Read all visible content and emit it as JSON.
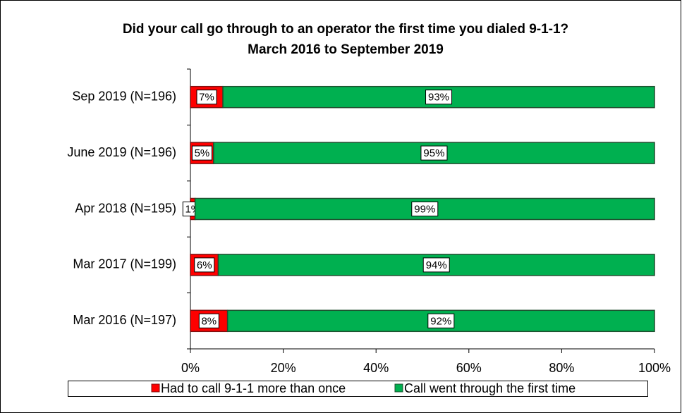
{
  "chart_data": {
    "type": "stacked_bar_horizontal",
    "title": "Did your call go through to an operator the first time you dialed 9-1-1?",
    "subtitle": "March 2016 to September 2019",
    "categories": [
      "Sep 2019 (N=196)",
      "June 2019 (N=196)",
      "Apr 2018 (N=195)",
      "Mar 2017 (N=199)",
      "Mar 2016 (N=197)"
    ],
    "series": [
      {
        "name": "Had to call 9-1-1 more than once",
        "color": "#ff0000",
        "border": "#7f1010",
        "values": [
          7,
          5,
          1,
          6,
          8
        ],
        "value_labels": [
          "7%",
          "5%",
          "1%",
          "6%",
          "8%"
        ]
      },
      {
        "name": "Call went through the first time",
        "color": "#00b050",
        "border": "#1f4f2f",
        "values": [
          93,
          95,
          99,
          94,
          92
        ],
        "value_labels": [
          "93%",
          "95%",
          "99%",
          "94%",
          "92%"
        ]
      }
    ],
    "xlim": [
      0,
      100
    ],
    "xticks": [
      {
        "value": 0,
        "label": "0%"
      },
      {
        "value": 20,
        "label": "20%"
      },
      {
        "value": 40,
        "label": "40%"
      },
      {
        "value": 60,
        "label": "60%"
      },
      {
        "value": 80,
        "label": "80%"
      },
      {
        "value": 100,
        "label": "100%"
      }
    ],
    "legend": "bottom"
  }
}
